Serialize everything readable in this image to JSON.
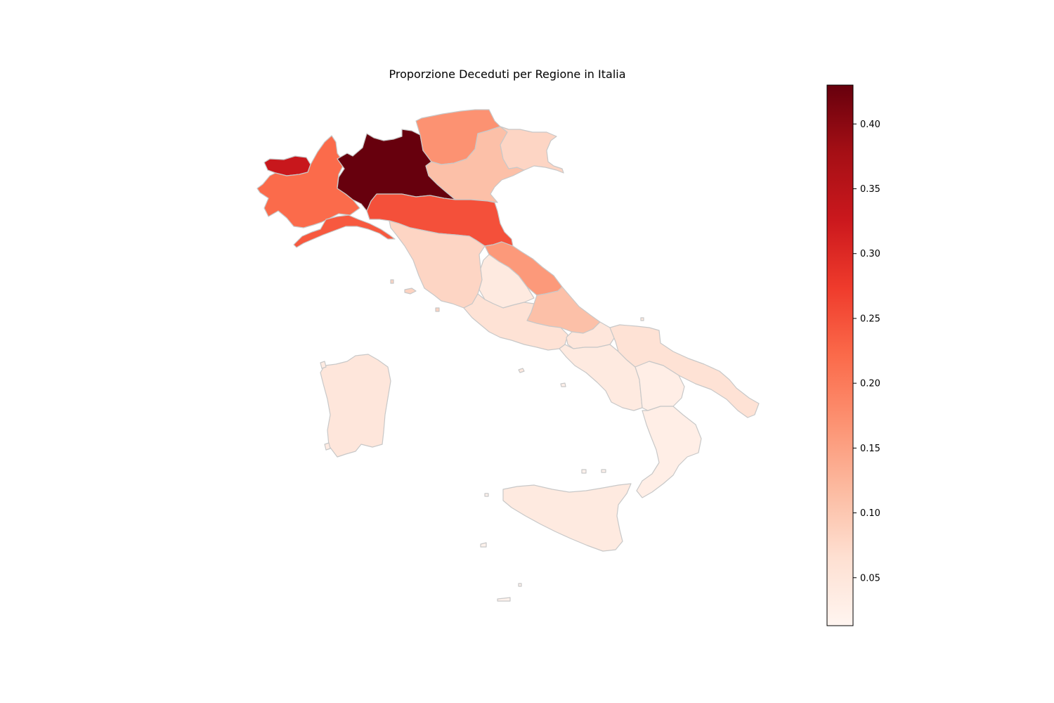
{
  "chart_data": {
    "type": "choropleth",
    "title": "Proporzione Deceduti per Regione in Italia",
    "colormap": "Reds",
    "color_min": "#fff5f0",
    "color_max": "#67000d",
    "value_range": [
      0.013,
      0.43
    ],
    "colorbar_ticks": [
      0.05,
      0.1,
      0.15,
      0.2,
      0.25,
      0.3,
      0.35,
      0.4
    ],
    "colorbar_tick_labels": [
      "0.05",
      "0.10",
      "0.15",
      "0.20",
      "0.25",
      "0.30",
      "0.35",
      "0.40"
    ],
    "border_color": "#c8c8c8",
    "regions": [
      {
        "id": "valle-d-aosta",
        "value": 0.33
      },
      {
        "id": "piemonte",
        "value": 0.22
      },
      {
        "id": "lombardia",
        "value": 0.43
      },
      {
        "id": "trentino-alto-adige",
        "value": 0.17
      },
      {
        "id": "veneto",
        "value": 0.11
      },
      {
        "id": "friuli-venezia-giulia",
        "value": 0.08
      },
      {
        "id": "liguria",
        "value": 0.24
      },
      {
        "id": "emilia-romagna",
        "value": 0.25
      },
      {
        "id": "toscana",
        "value": 0.08
      },
      {
        "id": "marche",
        "value": 0.16
      },
      {
        "id": "umbria",
        "value": 0.04
      },
      {
        "id": "abruzzo",
        "value": 0.11
      },
      {
        "id": "lazio",
        "value": 0.06
      },
      {
        "id": "molise",
        "value": 0.05
      },
      {
        "id": "campania",
        "value": 0.04
      },
      {
        "id": "puglia",
        "value": 0.06
      },
      {
        "id": "basilicata",
        "value": 0.03
      },
      {
        "id": "calabria",
        "value": 0.03
      },
      {
        "id": "sicilia",
        "value": 0.04
      },
      {
        "id": "sardegna",
        "value": 0.05
      }
    ]
  }
}
